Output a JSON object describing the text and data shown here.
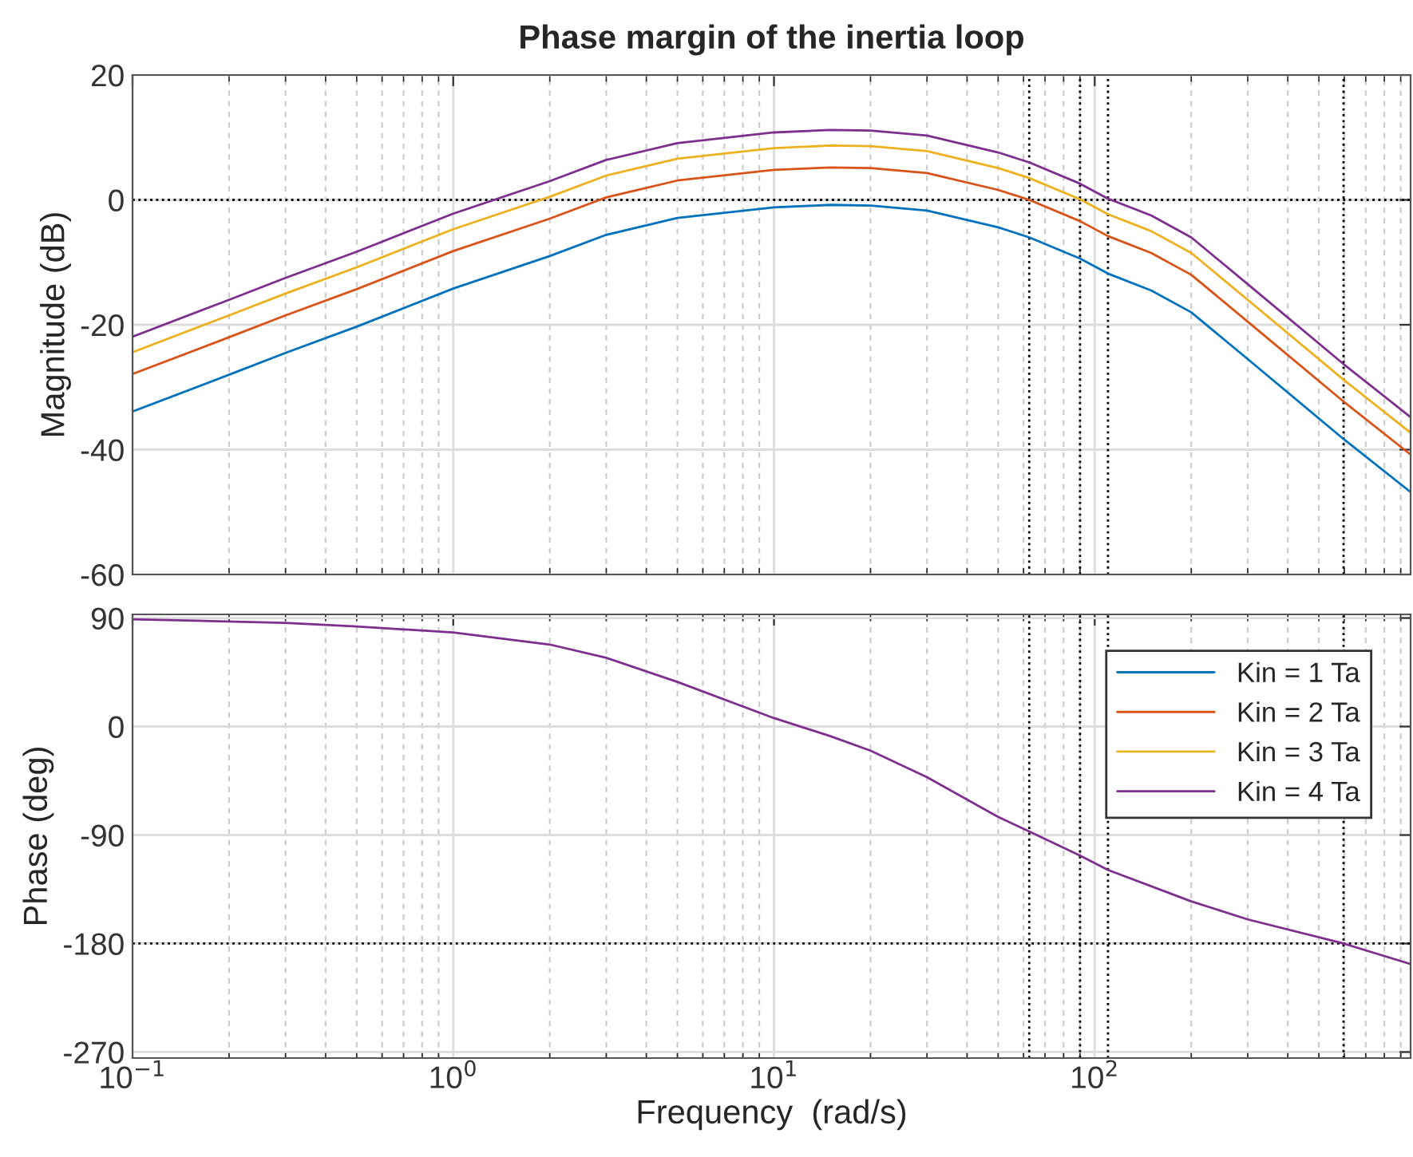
{
  "chart_data": [
    {
      "type": "line",
      "title": "Phase margin of the inertia loop",
      "ylabel": "Magnitude (dB)",
      "log": "x",
      "x": [
        0.1,
        0.2,
        0.3,
        0.5,
        1,
        2,
        3,
        5,
        10,
        15,
        20,
        30,
        50,
        62.5,
        90,
        110,
        150,
        200,
        300,
        597,
        966
      ],
      "series": [
        {
          "name": "Kin = 1 Ta",
          "color": "#0072bd",
          "values": [
            -33.9,
            -28.0,
            -24.5,
            -20.3,
            -14.2,
            -9.0,
            -5.6,
            -2.9,
            -1.2,
            -0.8,
            -0.9,
            -1.7,
            -4.4,
            -6.0,
            -9.4,
            -11.8,
            -14.5,
            -18.0,
            -25.5,
            -38.3,
            -46.8
          ]
        },
        {
          "name": "Kin = 2 Ta",
          "color": "#d95319",
          "values": [
            -27.9,
            -22.0,
            -18.5,
            -14.3,
            -8.2,
            -3.0,
            0.4,
            3.1,
            4.8,
            5.2,
            5.1,
            4.3,
            1.6,
            0.0,
            -3.4,
            -5.8,
            -8.5,
            -12.0,
            -19.5,
            -32.3,
            -40.8
          ]
        },
        {
          "name": "Kin = 3 Ta",
          "color": "#edb120",
          "values": [
            -24.4,
            -18.5,
            -15.0,
            -10.8,
            -4.7,
            0.5,
            3.9,
            6.6,
            8.3,
            8.7,
            8.6,
            7.8,
            5.1,
            3.5,
            0.1,
            -2.3,
            -5.0,
            -8.5,
            -16.0,
            -28.8,
            -37.3
          ]
        },
        {
          "name": "Kin = 4 Ta",
          "color": "#7e2f8e",
          "values": [
            -21.9,
            -16.0,
            -12.5,
            -8.3,
            -2.2,
            3.0,
            6.4,
            9.1,
            10.8,
            11.2,
            11.1,
            10.3,
            7.6,
            6.0,
            2.6,
            0.2,
            -2.5,
            -6.0,
            -13.5,
            -26.3,
            -34.8
          ]
        }
      ],
      "xlim": [
        0.1,
        966
      ],
      "xticks": [
        {
          "value": 0.1,
          "label": null
        },
        {
          "value": 1,
          "label": null
        },
        {
          "value": 10,
          "label": null
        },
        {
          "value": 100,
          "label": null
        }
      ],
      "ylim": [
        -60,
        20
      ],
      "yticks": [
        -60,
        -40,
        -20,
        0,
        20
      ],
      "tick_labels": "y",
      "grid": true,
      "legend": "bottom right",
      "ref_lines": [
        {
          "axis": "y",
          "value": 0,
          "line_style": "dotted",
          "color": "#000000"
        },
        {
          "axis": "x",
          "value": 62.5,
          "line_style": "dotted",
          "color": "#000000"
        },
        {
          "axis": "x",
          "value": 90,
          "line_style": "dotted",
          "color": "#000000"
        },
        {
          "axis": "x",
          "value": 110,
          "line_style": "dotted",
          "color": "#000000"
        },
        {
          "axis": "x",
          "value": 597,
          "line_style": "dotted",
          "color": "#000000"
        }
      ]
    },
    {
      "type": "line",
      "ylabel": "Phase (deg)",
      "xlabel": "Frequency  (rad/s)",
      "log": "x",
      "x": [
        0.1,
        0.3,
        0.5,
        1,
        2,
        3,
        5,
        10,
        15,
        20,
        30,
        50,
        62.5,
        90,
        110,
        200,
        300,
        597,
        966
      ],
      "series": [
        {
          "color": "#7e2f8e",
          "values": [
            89,
            86,
            83,
            78,
            68,
            57,
            37,
            7,
            -8,
            -20,
            -42,
            -75,
            -87,
            -107,
            -119,
            -145,
            -160,
            -180,
            -197
          ]
        }
      ],
      "xlim": [
        0.1,
        966
      ],
      "xticks": [
        {
          "value": 0.1,
          "label": "10$^{−1}$"
        },
        {
          "value": 1,
          "label": "10$^{0}$"
        },
        {
          "value": 10,
          "label": "10$^{1}$"
        },
        {
          "value": 100,
          "label": "10$^{2}$"
        }
      ],
      "ylim": [
        -275,
        93
      ],
      "yticks": [
        -270,
        -180,
        -90,
        0,
        90
      ],
      "grid": true,
      "ref_lines": [
        {
          "axis": "y",
          "value": -180,
          "line_style": "dotted",
          "color": "#000000"
        },
        {
          "axis": "x",
          "value": 62.5,
          "line_style": "dotted",
          "color": "#000000"
        },
        {
          "axis": "x",
          "value": 90,
          "line_style": "dotted",
          "color": "#000000"
        },
        {
          "axis": "x",
          "value": 110,
          "line_style": "dotted",
          "color": "#000000"
        },
        {
          "axis": "x",
          "value": 597,
          "line_style": "dotted",
          "color": "#000000"
        }
      ]
    }
  ]
}
